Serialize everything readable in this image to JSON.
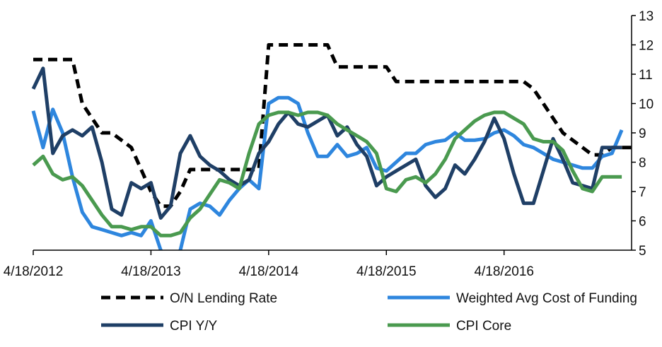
{
  "chart_data": {
    "type": "line",
    "title": "",
    "xlabel": "",
    "ylabel": "",
    "x_start": "4/18/2012",
    "x_step_months": 1,
    "x_ticks": [
      "4/18/2012",
      "4/18/2013",
      "4/18/2014",
      "4/18/2015",
      "4/18/2016"
    ],
    "ylim": [
      5,
      13
    ],
    "y_ticks": [
      "5",
      "6",
      "7",
      "8",
      "9",
      "10",
      "11",
      "12",
      "13"
    ],
    "y_axis_side": "right",
    "grid": false,
    "legend_position": "bottom",
    "series": [
      {
        "name": "O/N Lending Rate",
        "color": "#000000",
        "dash": "dashed",
        "values": [
          11.5,
          11.5,
          11.5,
          11.5,
          11.5,
          10.0,
          9.5,
          9.0,
          9.0,
          8.75,
          8.5,
          7.75,
          7.0,
          6.5,
          6.5,
          7.0,
          7.75,
          7.75,
          7.75,
          7.75,
          7.75,
          7.75,
          7.75,
          7.75,
          12.0,
          12.0,
          12.0,
          12.0,
          12.0,
          12.0,
          12.0,
          11.25,
          11.25,
          11.25,
          11.25,
          11.25,
          11.25,
          10.75,
          10.75,
          10.75,
          10.75,
          10.75,
          10.75,
          10.75,
          10.75,
          10.75,
          10.75,
          10.75,
          10.75,
          10.75,
          10.75,
          10.5,
          10.0,
          9.5,
          9.0,
          8.75,
          8.5,
          8.25,
          8.25,
          8.5,
          8.5,
          8.5
        ]
      },
      {
        "name": "Weighted Avg Cost of Funding",
        "color": "#2e86de",
        "dash": "solid",
        "values": [
          9.75,
          8.5,
          9.8,
          9.0,
          7.5,
          6.3,
          5.8,
          5.7,
          5.6,
          5.5,
          5.6,
          5.5,
          6.0,
          5.0,
          4.6,
          5.0,
          6.4,
          6.6,
          6.5,
          6.2,
          6.7,
          7.1,
          7.4,
          7.1,
          10.0,
          10.2,
          10.2,
          10.0,
          9.0,
          8.2,
          8.2,
          8.6,
          8.2,
          8.3,
          8.5,
          7.8,
          7.7,
          8.0,
          8.3,
          8.3,
          8.6,
          8.7,
          8.75,
          9.0,
          8.75,
          8.75,
          8.8,
          9.0,
          9.1,
          8.9,
          8.6,
          8.5,
          8.3,
          8.1,
          8.0,
          7.9,
          7.8,
          7.8,
          8.2,
          8.3,
          9.1
        ]
      },
      {
        "name": "CPI Y/Y",
        "color": "#1f3f66",
        "dash": "solid",
        "values": [
          10.5,
          11.2,
          8.3,
          8.9,
          9.1,
          8.9,
          9.2,
          8.0,
          6.4,
          6.2,
          7.3,
          7.1,
          7.3,
          6.1,
          6.5,
          8.3,
          8.9,
          8.2,
          7.9,
          7.7,
          7.4,
          7.2,
          7.4,
          8.3,
          8.7,
          9.3,
          9.7,
          9.3,
          9.2,
          9.4,
          9.6,
          8.9,
          9.2,
          8.6,
          8.2,
          7.2,
          7.5,
          7.7,
          7.9,
          8.1,
          7.2,
          6.8,
          7.1,
          7.9,
          7.6,
          8.1,
          8.7,
          9.5,
          8.8,
          7.6,
          6.6,
          6.6,
          7.7,
          8.8,
          8.1,
          7.3,
          7.2,
          7.1,
          8.5,
          8.5,
          8.5
        ]
      },
      {
        "name": "CPI Core",
        "color": "#4a9a4f",
        "dash": "solid",
        "values": [
          7.9,
          8.2,
          7.6,
          7.4,
          7.5,
          7.2,
          6.7,
          6.2,
          5.8,
          5.8,
          5.7,
          5.8,
          5.8,
          5.5,
          5.5,
          5.6,
          6.1,
          6.4,
          6.9,
          7.4,
          7.3,
          7.1,
          8.3,
          9.3,
          9.6,
          9.7,
          9.7,
          9.6,
          9.7,
          9.7,
          9.6,
          9.3,
          9.1,
          8.9,
          8.7,
          8.3,
          7.1,
          7.0,
          7.4,
          7.5,
          7.3,
          7.6,
          8.1,
          8.8,
          9.1,
          9.4,
          9.6,
          9.7,
          9.7,
          9.5,
          9.3,
          8.8,
          8.7,
          8.7,
          8.4,
          7.7,
          7.1,
          7.0,
          7.5,
          7.5,
          7.5
        ]
      }
    ]
  }
}
